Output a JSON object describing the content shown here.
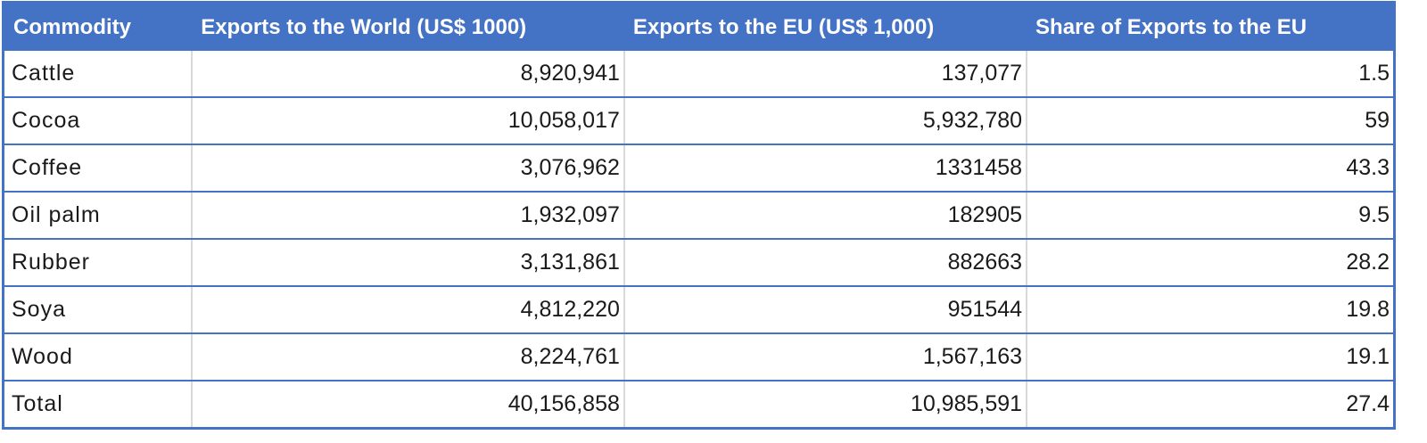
{
  "table": {
    "headers": [
      "Commodity",
      "Exports to the World (US$ 1000)",
      "Exports to the EU (US$ 1,000)",
      "Share of Exports to the EU"
    ],
    "rows": [
      [
        "Cattle",
        "8,920,941",
        "137,077",
        "1.5"
      ],
      [
        "Cocoa",
        "10,058,017",
        "5,932,780",
        "59"
      ],
      [
        "Coffee",
        "3,076,962",
        "1331458",
        "43.3"
      ],
      [
        "Oil palm",
        "1,932,097",
        "182905",
        "9.5"
      ],
      [
        "Rubber",
        "3,131,861",
        "882663",
        "28.2"
      ],
      [
        "Soya",
        "4,812,220",
        "951544",
        "19.8"
      ],
      [
        "Wood",
        "8,224,761",
        "1,567,163",
        "19.1"
      ],
      [
        "Total",
        "40,156,858",
        "10,985,591",
        "27.4"
      ]
    ]
  },
  "colors": {
    "header_bg": "#4472c4",
    "header_text": "#ffffff",
    "row_border": "#4472c4",
    "column_divider": "#d9d9d9"
  }
}
